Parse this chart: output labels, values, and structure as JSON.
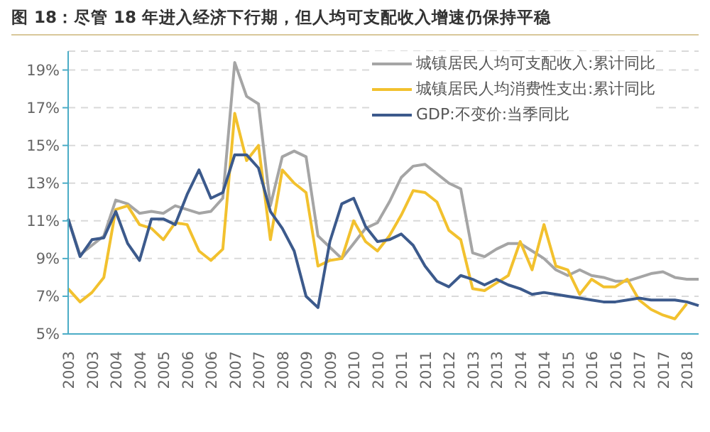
{
  "chart_data": {
    "type": "line",
    "title": "图 18：尽管 18 年进入经济下行期，但人均可支配收入增速仍保持平稳",
    "categories": [
      "2003",
      null,
      "2003",
      null,
      "2004",
      null,
      "2004",
      null,
      "2005",
      null,
      "2006",
      null,
      "2006",
      null,
      "2007",
      null,
      "2007",
      null,
      "2008",
      null,
      "2009",
      null,
      "2009",
      null,
      "2010",
      null,
      "2010",
      null,
      "2011",
      null,
      "2011",
      null,
      "2012",
      null,
      "2013",
      null,
      "2013",
      null,
      "2014",
      null,
      "2014",
      null,
      "2015",
      null,
      "2016",
      null,
      "2016",
      null,
      "2017",
      null,
      "2017",
      null,
      "2018",
      null
    ],
    "series": [
      {
        "name": "城镇居民人均可支配收入:累计同比",
        "color": "#a5a5a5",
        "values": [
          11.1,
          9.2,
          9.7,
          10.2,
          12.1,
          11.9,
          11.4,
          11.5,
          11.4,
          11.8,
          11.6,
          11.4,
          11.5,
          12.2,
          19.4,
          17.6,
          17.2,
          11.8,
          14.4,
          14.7,
          14.4,
          10.2,
          9.6,
          9.0,
          9.8,
          10.6,
          10.9,
          12.0,
          13.3,
          13.9,
          14.0,
          13.5,
          13.0,
          12.7,
          9.3,
          9.1,
          9.5,
          9.8,
          9.8,
          9.4,
          9.0,
          8.4,
          8.1,
          8.4,
          8.1,
          8.0,
          7.8,
          7.8,
          8.0,
          8.2,
          8.3,
          8.0,
          7.9,
          7.9
        ]
      },
      {
        "name": "城镇居民人均消费性支出:累计同比",
        "color": "#f2c12e",
        "values": [
          7.4,
          6.7,
          7.2,
          8.0,
          11.6,
          11.8,
          10.8,
          10.6,
          10.0,
          10.9,
          10.8,
          9.4,
          8.9,
          9.5,
          16.7,
          14.2,
          15.0,
          10.0,
          13.7,
          13.0,
          12.5,
          8.6,
          8.9,
          9.0,
          11.0,
          9.9,
          9.4,
          10.2,
          11.3,
          12.6,
          12.5,
          12.0,
          10.5,
          10.0,
          7.4,
          7.3,
          7.7,
          8.1,
          9.9,
          8.4,
          10.8,
          8.6,
          8.4,
          7.1,
          7.9,
          7.5,
          7.5,
          7.9,
          6.8,
          6.3,
          6.0,
          5.8,
          6.6,
          null
        ]
      },
      {
        "name": "GDP:不变价:当季同比",
        "color": "#3c5a8c",
        "values": [
          11.1,
          9.1,
          10.0,
          10.1,
          11.5,
          9.8,
          8.9,
          11.1,
          11.1,
          10.8,
          12.4,
          13.7,
          12.2,
          12.5,
          14.5,
          14.5,
          13.8,
          11.5,
          10.6,
          9.4,
          7.0,
          6.4,
          9.9,
          11.9,
          12.2,
          10.7,
          9.9,
          10.0,
          10.3,
          9.7,
          8.6,
          7.8,
          7.5,
          8.1,
          7.9,
          7.6,
          7.9,
          7.6,
          7.4,
          7.1,
          7.2,
          7.1,
          7.0,
          6.9,
          6.8,
          6.7,
          6.7,
          6.8,
          6.9,
          6.8,
          6.8,
          6.8,
          6.7,
          6.5
        ]
      }
    ],
    "ylim": [
      5,
      20
    ],
    "yticks": [
      {
        "value": 5,
        "label": "5%"
      },
      {
        "value": 7,
        "label": "7%"
      },
      {
        "value": 9,
        "label": "9%"
      },
      {
        "value": 11,
        "label": "11%"
      },
      {
        "value": 13,
        "label": "13%"
      },
      {
        "value": 15,
        "label": "15%"
      },
      {
        "value": 17,
        "label": "17%"
      },
      {
        "value": 19,
        "label": "19%"
      }
    ],
    "grid": "y",
    "legend": "top right",
    "marker": "none",
    "line_style": "solid"
  }
}
